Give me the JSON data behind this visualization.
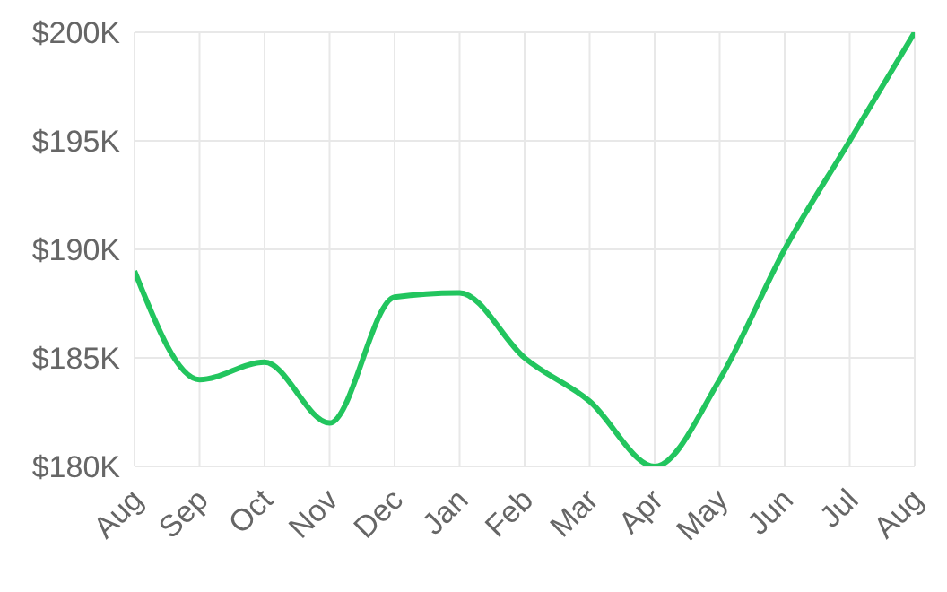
{
  "chart_data": {
    "type": "line",
    "categories": [
      "Aug",
      "Sep",
      "Oct",
      "Nov",
      "Dec",
      "Jan",
      "Feb",
      "Mar",
      "Apr",
      "May",
      "Jun",
      "Jul",
      "Aug"
    ],
    "series": [
      {
        "color": "#22c55e",
        "values": [
          189,
          184,
          184.8,
          182,
          187.8,
          188,
          185,
          183,
          180,
          184,
          190,
          195,
          200
        ]
      }
    ],
    "ylim": [
      180,
      200
    ],
    "yticks": [
      {
        "value": 180,
        "label": "$180K"
      },
      {
        "value": 185,
        "label": "$185K"
      },
      {
        "value": 190,
        "label": "$190K"
      },
      {
        "value": 195,
        "label": "$195K"
      },
      {
        "value": 200,
        "label": "$200K"
      }
    ],
    "grid": true,
    "marker": "none",
    "line_style": "solid"
  }
}
